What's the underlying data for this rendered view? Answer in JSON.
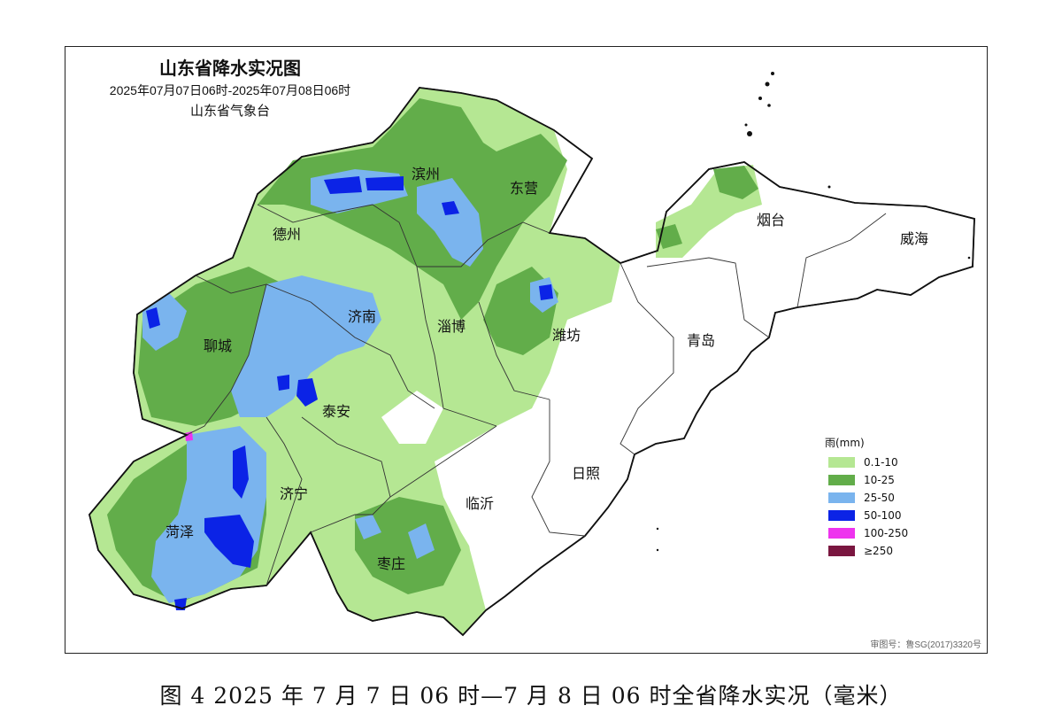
{
  "map": {
    "title": "山东省降水实况图",
    "period": "2025年07月07日06时-2025年07月08日06时",
    "source": "山东省气象台",
    "review_number": "审图号：鲁SG(2017)3320号"
  },
  "cities": [
    {
      "name": "滨州"
    },
    {
      "name": "东营"
    },
    {
      "name": "烟台"
    },
    {
      "name": "威海"
    },
    {
      "name": "德州"
    },
    {
      "name": "济南"
    },
    {
      "name": "淄博"
    },
    {
      "name": "潍坊"
    },
    {
      "name": "青岛"
    },
    {
      "name": "聊城"
    },
    {
      "name": "泰安"
    },
    {
      "name": "日照"
    },
    {
      "name": "济宁"
    },
    {
      "name": "临沂"
    },
    {
      "name": "菏泽"
    },
    {
      "name": "枣庄"
    }
  ],
  "legend": {
    "title": "雨(mm)",
    "items": [
      {
        "label": "0.1-10",
        "color": "#b5e793"
      },
      {
        "label": "10-25",
        "color": "#62ad4a"
      },
      {
        "label": "25-50",
        "color": "#7ab4ee"
      },
      {
        "label": "50-100",
        "color": "#0b23e6"
      },
      {
        "label": "100-250",
        "color": "#ee33ee"
      },
      {
        "label": "≥250",
        "color": "#7a1640"
      }
    ]
  },
  "caption": "图 4 2025 年 7 月 7 日 06 时—7 月 8 日 06 时全省降水实况（毫米）"
}
